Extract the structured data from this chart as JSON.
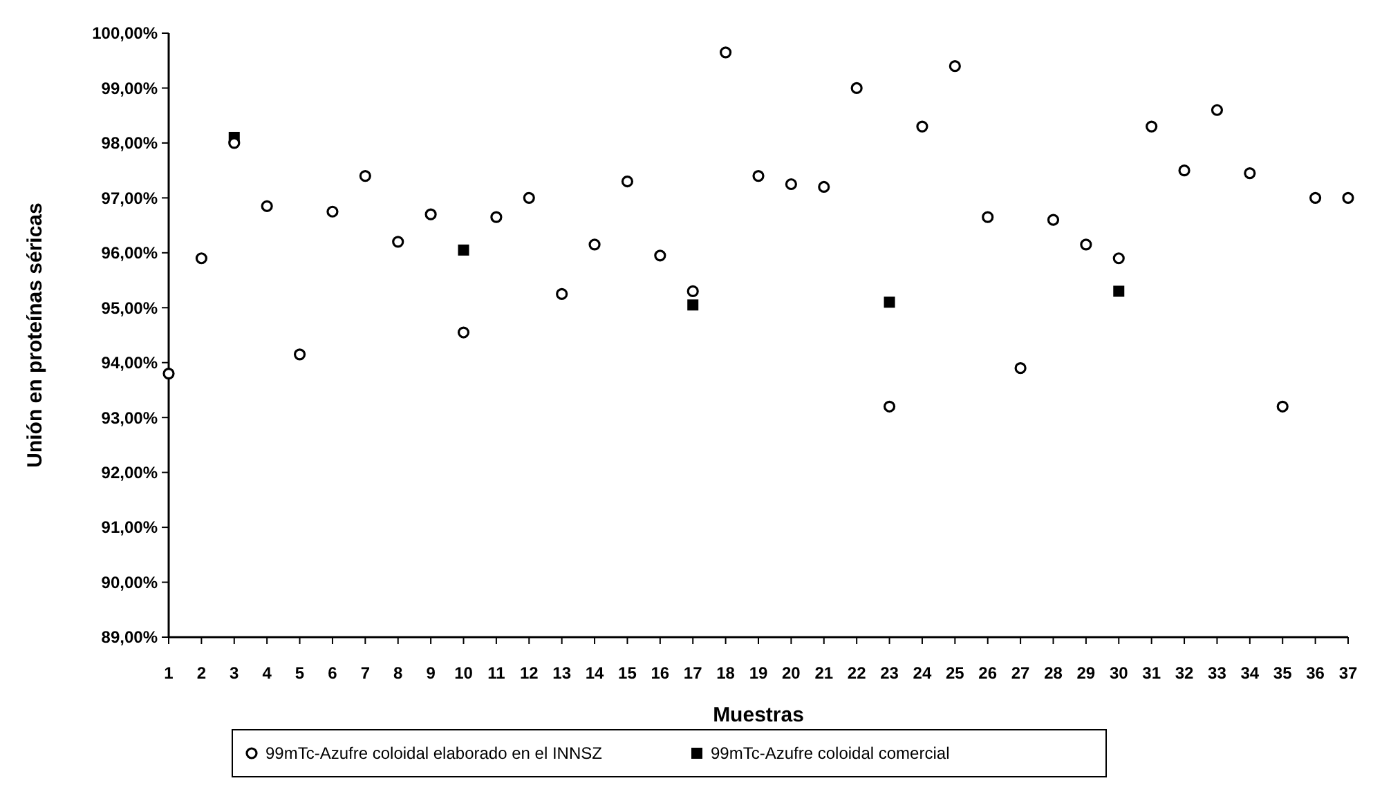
{
  "chart_data": {
    "type": "scatter",
    "xlabel": "Muestras",
    "ylabel": "Unión en proteínas séricas",
    "xlim": [
      1,
      37
    ],
    "xticks": [
      1,
      2,
      3,
      4,
      5,
      6,
      7,
      8,
      9,
      10,
      11,
      12,
      13,
      14,
      15,
      16,
      17,
      18,
      19,
      20,
      21,
      22,
      23,
      24,
      25,
      26,
      27,
      28,
      29,
      30,
      31,
      32,
      33,
      34,
      35,
      36,
      37
    ],
    "ylim": [
      89,
      100
    ],
    "yticks": [
      {
        "value": 89,
        "label": "89,00%"
      },
      {
        "value": 90,
        "label": "90,00%"
      },
      {
        "value": 91,
        "label": "91,00%"
      },
      {
        "value": 92,
        "label": "92,00%"
      },
      {
        "value": 93,
        "label": "93,00%"
      },
      {
        "value": 94,
        "label": "94,00%"
      },
      {
        "value": 95,
        "label": "95,00%"
      },
      {
        "value": 96,
        "label": "96,00%"
      },
      {
        "value": 97,
        "label": "97,00%"
      },
      {
        "value": 98,
        "label": "98,00%"
      },
      {
        "value": 99,
        "label": "99,00%"
      },
      {
        "value": 100,
        "label": "100,00%"
      }
    ],
    "grid": false,
    "legend": "bottom",
    "series": [
      {
        "name": "99mTc-Azufre coloidal elaborado en el INNSZ",
        "color": "#000000",
        "marker": "circle",
        "x": [
          1,
          2,
          3,
          4,
          5,
          6,
          7,
          8,
          9,
          10,
          11,
          12,
          13,
          14,
          15,
          16,
          17,
          18,
          19,
          20,
          21,
          22,
          23,
          24,
          25,
          26,
          27,
          28,
          29,
          30,
          31,
          32,
          33,
          34,
          35,
          36,
          37
        ],
        "values": [
          93.8,
          95.9,
          98.0,
          96.85,
          94.15,
          96.75,
          97.4,
          96.2,
          96.7,
          94.55,
          96.65,
          97.0,
          95.25,
          96.15,
          97.3,
          95.95,
          95.3,
          99.65,
          97.4,
          97.25,
          97.2,
          99.0,
          93.2,
          98.3,
          99.4,
          96.65,
          93.9,
          96.6,
          96.15,
          95.9,
          98.3,
          97.5,
          98.6,
          97.45,
          93.2,
          97.0,
          97.0
        ]
      },
      {
        "name": "99mTc-Azufre coloidal comercial",
        "color": "#000000",
        "marker": "square",
        "x": [
          3,
          10,
          17,
          23,
          30
        ],
        "values": [
          98.1,
          96.05,
          95.05,
          95.1,
          95.3
        ]
      }
    ]
  }
}
